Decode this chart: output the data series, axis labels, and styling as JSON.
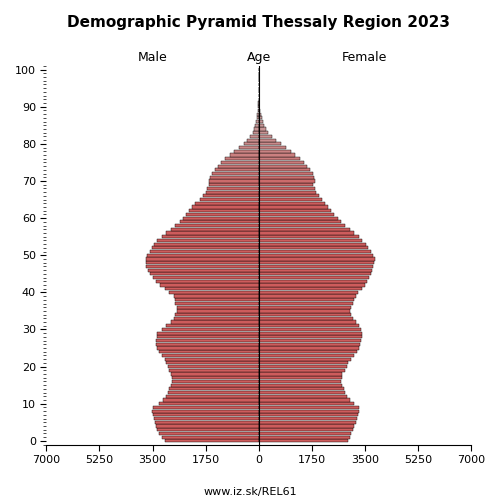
{
  "title": "Demographic Pyramid Thessaly Region 2023",
  "xlabel_left": "Male",
  "xlabel_right": "Female",
  "xlabel_center": "Age",
  "footer": "www.iz.sk/REL61",
  "xlim": 7000,
  "bar_color_young": "#cd5c5c",
  "bar_color_old": "#c8b8b8",
  "bar_edge_color": "#000000",
  "bg_color": "#ffffff",
  "male": [
    3100,
    3200,
    3300,
    3350,
    3400,
    3430,
    3450,
    3480,
    3520,
    3500,
    3300,
    3150,
    3050,
    3000,
    2950,
    2900,
    2850,
    2850,
    2900,
    2950,
    3000,
    3050,
    3100,
    3200,
    3300,
    3350,
    3400,
    3380,
    3360,
    3340,
    3200,
    3050,
    2900,
    2800,
    2750,
    2700,
    2700,
    2750,
    2750,
    2800,
    2950,
    3100,
    3250,
    3400,
    3500,
    3600,
    3650,
    3700,
    3720,
    3720,
    3680,
    3600,
    3520,
    3440,
    3360,
    3200,
    3050,
    2900,
    2750,
    2600,
    2500,
    2400,
    2300,
    2200,
    2100,
    1950,
    1850,
    1750,
    1700,
    1650,
    1650,
    1600,
    1550,
    1450,
    1350,
    1250,
    1100,
    950,
    800,
    650,
    500,
    380,
    280,
    200,
    150,
    120,
    90,
    60,
    40,
    25,
    15,
    10,
    5,
    3,
    2,
    1,
    1,
    0,
    0,
    0,
    0
  ],
  "female": [
    2950,
    3000,
    3050,
    3100,
    3150,
    3200,
    3250,
    3280,
    3300,
    3320,
    3150,
    3000,
    2900,
    2850,
    2800,
    2750,
    2700,
    2750,
    2750,
    2850,
    2900,
    2950,
    3050,
    3150,
    3250,
    3300,
    3350,
    3380,
    3400,
    3420,
    3380,
    3300,
    3200,
    3100,
    3050,
    3000,
    3050,
    3100,
    3150,
    3200,
    3280,
    3400,
    3500,
    3580,
    3650,
    3700,
    3750,
    3780,
    3800,
    3820,
    3780,
    3700,
    3620,
    3540,
    3420,
    3300,
    3150,
    3000,
    2850,
    2700,
    2600,
    2500,
    2400,
    2300,
    2200,
    2100,
    2000,
    1900,
    1850,
    1800,
    1850,
    1820,
    1780,
    1700,
    1600,
    1500,
    1350,
    1200,
    1050,
    900,
    730,
    580,
    430,
    310,
    230,
    180,
    140,
    100,
    65,
    40,
    25,
    15,
    8,
    5,
    3,
    2,
    1,
    0,
    0,
    0,
    0
  ]
}
